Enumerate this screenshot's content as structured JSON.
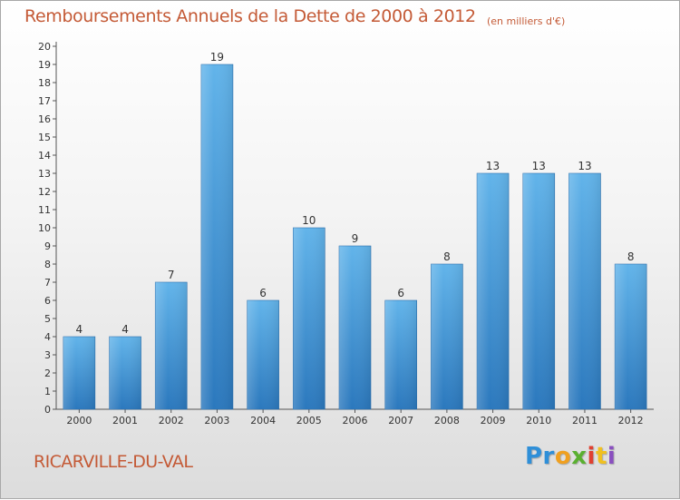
{
  "chart_data": {
    "type": "bar",
    "title": "Remboursements Annuels de la Dette de 2000 à 2012",
    "subtitle": "(en milliers d'€)",
    "categories": [
      "2000",
      "2001",
      "2002",
      "2003",
      "2004",
      "2005",
      "2006",
      "2007",
      "2008",
      "2009",
      "2010",
      "2011",
      "2012"
    ],
    "values": [
      4,
      4,
      7,
      19,
      6,
      10,
      9,
      6,
      8,
      13,
      13,
      13,
      8
    ],
    "ylim": [
      0,
      20
    ],
    "yticks": [
      0,
      1,
      2,
      3,
      4,
      5,
      6,
      7,
      8,
      9,
      10,
      11,
      12,
      13,
      14,
      15,
      16,
      17,
      18,
      19,
      20
    ],
    "xlabel": "",
    "ylabel": "",
    "grid": false,
    "bar_color": "#4a9de0"
  },
  "footer": {
    "commune": "RICARVILLE-DU-VAL",
    "logo_parts": [
      "Pr",
      "o",
      "x",
      "i",
      "t",
      "i"
    ]
  },
  "colors": {
    "title": "#c45a36",
    "bar_top": "#62b4ea",
    "bar_bottom": "#2b78bd"
  }
}
